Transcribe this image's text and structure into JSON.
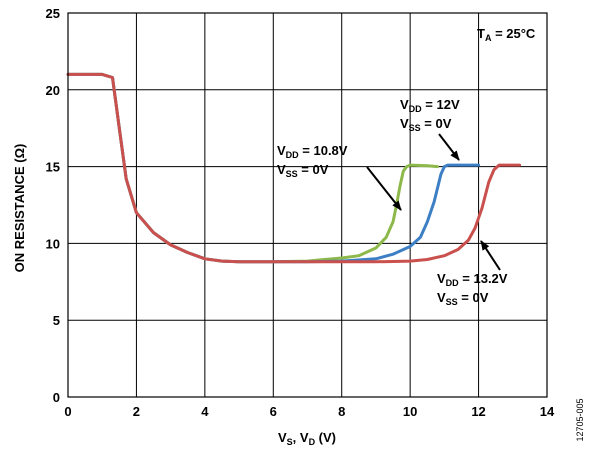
{
  "chart_data": {
    "type": "line",
    "xlabel": {
      "main": "V",
      "sub1": "S",
      "sep": ", V",
      "sub2": "D",
      "unit": " (V)"
    },
    "ylabel": "ON RESISTANCE (Ω)",
    "xlim": [
      0,
      14
    ],
    "ylim": [
      0,
      25
    ],
    "xticks": [
      0,
      2,
      4,
      6,
      8,
      10,
      12,
      14
    ],
    "yticks": [
      0,
      5,
      10,
      15,
      20,
      25
    ],
    "grid": true,
    "figure_id": "12705-005",
    "temperature_note": {
      "main": "T",
      "sub": "A",
      "rest": " = 25°C"
    },
    "series": [
      {
        "color": "#8db84a",
        "x": [
          0.0,
          0.5,
          1.0,
          1.3,
          1.5,
          1.7,
          2.0,
          2.5,
          3.0,
          3.5,
          4.0,
          4.5,
          5.0,
          6.0,
          7.0,
          7.5,
          8.0,
          8.5,
          9.0,
          9.3,
          9.5,
          9.6,
          9.7,
          9.8,
          9.9,
          10.0,
          10.5,
          10.8
        ],
        "values": [
          21.0,
          21.0,
          21.0,
          20.8,
          17.5,
          14.2,
          12.0,
          10.7,
          9.9,
          9.4,
          9.0,
          8.85,
          8.8,
          8.8,
          8.85,
          8.95,
          9.05,
          9.2,
          9.7,
          10.4,
          11.4,
          12.5,
          13.7,
          14.7,
          15.0,
          15.1,
          15.05,
          15.0
        ]
      },
      {
        "color": "#3d7fc4",
        "x": [
          0.0,
          0.5,
          1.0,
          1.3,
          1.5,
          1.7,
          2.0,
          2.5,
          3.0,
          3.5,
          4.0,
          4.5,
          5.0,
          6.0,
          7.0,
          8.0,
          9.0,
          9.5,
          10.0,
          10.3,
          10.5,
          10.7,
          10.8,
          10.9,
          11.0,
          11.1,
          11.2,
          11.5,
          12.0
        ],
        "values": [
          21.0,
          21.0,
          21.0,
          20.8,
          17.5,
          14.2,
          12.0,
          10.7,
          9.9,
          9.4,
          9.0,
          8.85,
          8.8,
          8.8,
          8.8,
          8.85,
          9.0,
          9.3,
          9.8,
          10.4,
          11.4,
          12.7,
          13.6,
          14.5,
          15.0,
          15.1,
          15.1,
          15.1,
          15.1
        ]
      },
      {
        "color": "#c9504d",
        "x": [
          0.0,
          0.5,
          1.0,
          1.3,
          1.5,
          1.7,
          2.0,
          2.5,
          3.0,
          3.5,
          4.0,
          4.5,
          5.0,
          6.0,
          7.0,
          8.0,
          9.0,
          10.0,
          10.5,
          11.0,
          11.4,
          11.7,
          11.9,
          12.1,
          12.3,
          12.45,
          12.6,
          13.0,
          13.2
        ],
        "values": [
          21.0,
          21.0,
          21.0,
          20.8,
          17.5,
          14.2,
          12.0,
          10.7,
          9.9,
          9.4,
          9.0,
          8.85,
          8.8,
          8.8,
          8.8,
          8.8,
          8.8,
          8.85,
          8.95,
          9.2,
          9.6,
          10.2,
          11.0,
          12.3,
          14.0,
          14.8,
          15.1,
          15.1,
          15.1
        ]
      }
    ],
    "annotations": [
      {
        "vdd_label": "V",
        "vdd_sub": "DD",
        "vdd_value": " = 10.8V",
        "vss_label": "V",
        "vss_sub": "SS",
        "vss_value": " = 0V"
      },
      {
        "vdd_label": "V",
        "vdd_sub": "DD",
        "vdd_value": " = 12V",
        "vss_label": "V",
        "vss_sub": "SS",
        "vss_value": " = 0V"
      },
      {
        "vdd_label": "V",
        "vdd_sub": "DD",
        "vdd_value": " = 13.2V",
        "vss_label": "V",
        "vss_sub": "SS",
        "vss_value": " = 0V"
      }
    ]
  }
}
